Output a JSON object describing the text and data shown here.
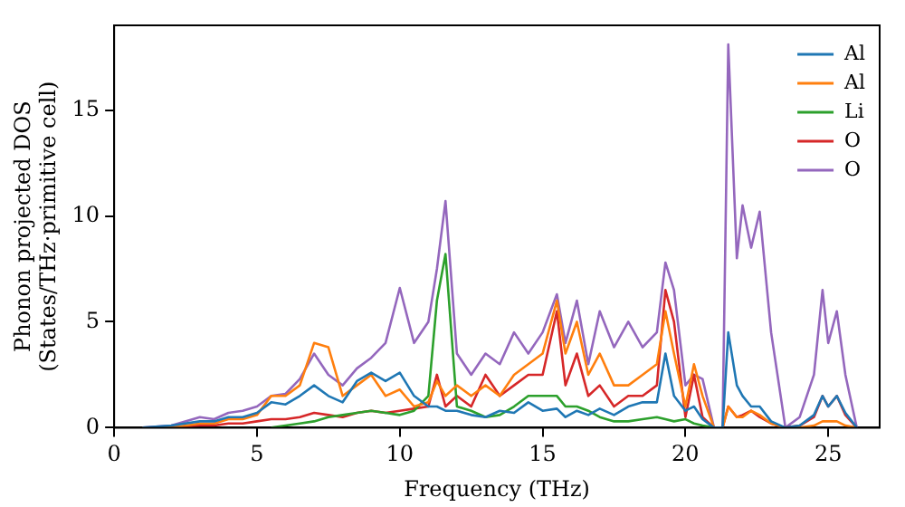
{
  "chart_data": {
    "type": "line",
    "xlabel": "Frequency (THz)",
    "ylabel": "Phonon projected DOS\n(States/THz·primitive cell)",
    "x": [
      1,
      2,
      3,
      3.5,
      4,
      4.5,
      5,
      5.5,
      6,
      6.5,
      7,
      7.5,
      8,
      8.5,
      9,
      9.5,
      10,
      10.5,
      11,
      11.3,
      11.6,
      12,
      12.5,
      13,
      13.5,
      14,
      14.5,
      15,
      15.5,
      15.8,
      16.2,
      16.6,
      17,
      17.5,
      18,
      18.5,
      19,
      19.3,
      19.6,
      20,
      20.3,
      20.6,
      21,
      21.3,
      21.5,
      21.8,
      22,
      22.3,
      22.6,
      23,
      23.5,
      24,
      24.5,
      24.8,
      25,
      25.3,
      25.6,
      26
    ],
    "series": [
      {
        "name": "Al",
        "color": "#1f77b4",
        "values": [
          0,
          0.1,
          0.3,
          0.3,
          0.5,
          0.5,
          0.7,
          1.2,
          1.1,
          1.5,
          2.0,
          1.5,
          1.2,
          2.2,
          2.6,
          2.2,
          2.6,
          1.5,
          1.0,
          1.0,
          0.8,
          0.8,
          0.6,
          0.5,
          0.8,
          0.7,
          1.2,
          0.8,
          0.9,
          0.5,
          0.8,
          0.6,
          0.9,
          0.6,
          1.0,
          1.2,
          1.2,
          3.5,
          1.5,
          0.8,
          1.0,
          0.4,
          0,
          0,
          4.5,
          2.0,
          1.5,
          1.0,
          1.0,
          0.3,
          0,
          0.1,
          0.6,
          1.5,
          1.0,
          1.5,
          0.7,
          0
        ]
      },
      {
        "name": "Al",
        "color": "#ff7f0e",
        "values": [
          0,
          0,
          0.2,
          0.2,
          0.4,
          0.4,
          0.6,
          1.5,
          1.5,
          2.0,
          4.0,
          3.8,
          1.5,
          2.0,
          2.5,
          1.5,
          1.8,
          1.0,
          1.2,
          2.2,
          1.5,
          2.0,
          1.5,
          2.0,
          1.5,
          2.5,
          3.0,
          3.5,
          6.0,
          3.5,
          5.0,
          2.5,
          3.5,
          2.0,
          2.0,
          2.5,
          3.0,
          5.5,
          3.5,
          1.0,
          3.0,
          1.5,
          0,
          0,
          1.0,
          0.5,
          0.5,
          0.8,
          0.6,
          0.2,
          0,
          0,
          0.1,
          0.3,
          0.3,
          0.3,
          0.1,
          0
        ]
      },
      {
        "name": "Li",
        "color": "#2ca02c",
        "values": [
          null,
          null,
          null,
          null,
          null,
          null,
          null,
          0,
          0.1,
          0.2,
          0.3,
          0.5,
          0.6,
          0.7,
          0.8,
          0.7,
          0.6,
          0.8,
          1.5,
          6.0,
          8.2,
          1.0,
          0.8,
          0.5,
          0.6,
          1.0,
          1.5,
          1.5,
          1.5,
          1.0,
          1.0,
          0.8,
          0.5,
          0.3,
          0.3,
          0.4,
          0.5,
          0.4,
          0.3,
          0.4,
          0.2,
          0.1,
          0,
          0,
          null,
          null,
          null,
          null,
          null,
          null,
          null,
          null,
          null,
          null,
          null,
          null,
          null,
          null
        ]
      },
      {
        "name": "O",
        "color": "#d62728",
        "values": [
          null,
          0,
          0.1,
          0.1,
          0.2,
          0.2,
          0.3,
          0.4,
          0.4,
          0.5,
          0.7,
          0.6,
          0.5,
          0.7,
          0.8,
          0.7,
          0.8,
          0.9,
          1.0,
          2.5,
          1.0,
          1.5,
          1.0,
          2.5,
          1.5,
          2.0,
          2.5,
          2.5,
          5.5,
          2.0,
          3.5,
          1.5,
          2.0,
          1.0,
          1.5,
          1.5,
          2.0,
          6.5,
          5.0,
          0.5,
          2.5,
          0.5,
          0,
          0,
          1.0,
          0.5,
          0.6,
          0.8,
          0.5,
          0.2,
          0,
          0.1,
          0.5,
          1.5,
          1.0,
          1.5,
          0.6,
          0
        ]
      },
      {
        "name": "O",
        "color": "#9467bd",
        "values": [
          0,
          0.1,
          0.5,
          0.4,
          0.7,
          0.8,
          1.0,
          1.5,
          1.6,
          2.3,
          3.5,
          2.5,
          2.0,
          2.8,
          3.3,
          4.0,
          6.6,
          4.0,
          5.0,
          7.5,
          10.7,
          3.5,
          2.5,
          3.5,
          3.0,
          4.5,
          3.5,
          4.5,
          6.3,
          4.0,
          6.0,
          3.0,
          5.5,
          3.8,
          5.0,
          3.8,
          4.5,
          7.8,
          6.5,
          2.0,
          2.5,
          2.3,
          0,
          0,
          18.1,
          8.0,
          10.5,
          8.5,
          10.2,
          4.5,
          0,
          0.5,
          2.5,
          6.5,
          4.0,
          5.5,
          2.5,
          0
        ]
      }
    ],
    "xlim": [
      0,
      26.8
    ],
    "ylim": [
      0,
      19
    ],
    "xticks": [
      0,
      5,
      10,
      15,
      20,
      25
    ],
    "yticks": [
      0,
      5,
      10,
      15
    ],
    "grid": false,
    "legend": "top right",
    "marker": "none",
    "line_style": "solid"
  }
}
